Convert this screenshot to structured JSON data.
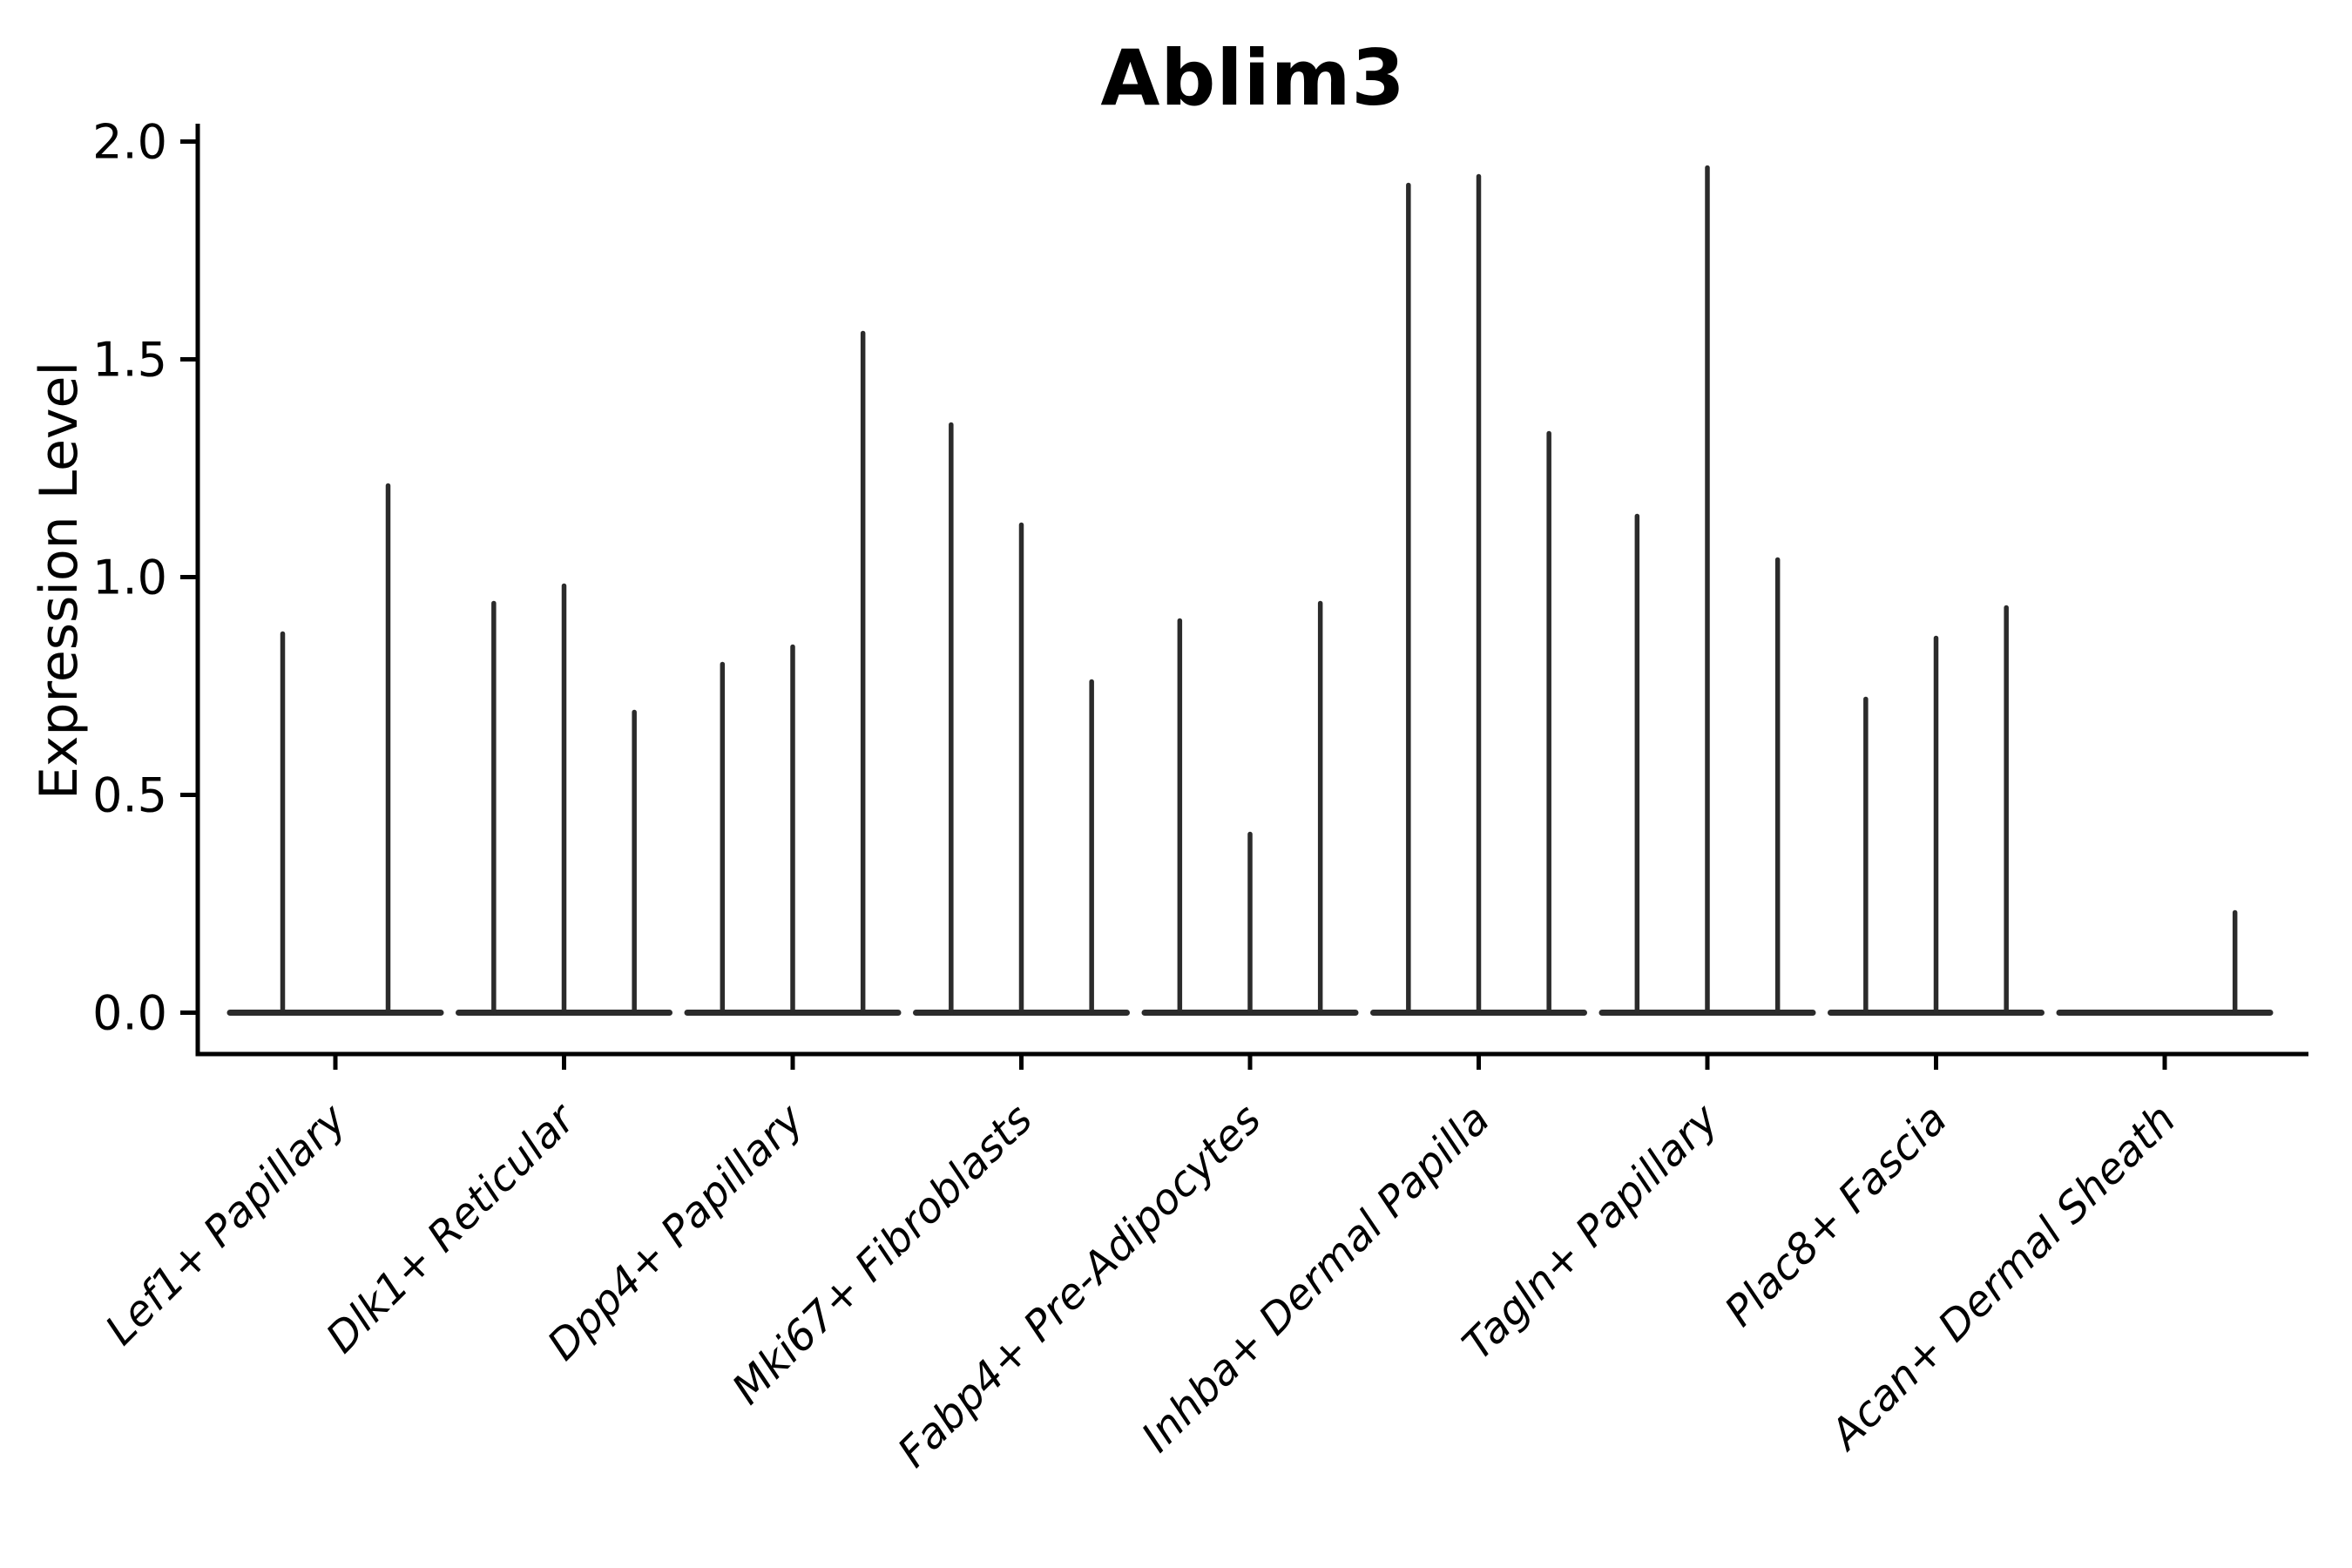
{
  "chart_data": {
    "type": "violin",
    "title": "Ablim3",
    "ylabel": "Expression Level",
    "xlabel": "",
    "ylim": [
      -0.095,
      2.04
    ],
    "yticks": [
      0.0,
      0.5,
      1.0,
      1.5,
      2.0
    ],
    "ytick_labels": [
      "0.0",
      "0.5",
      "1.0",
      "1.5",
      "2.0"
    ],
    "grid": false,
    "legend": false,
    "violin_color": "#2b2b2b",
    "axis_color": "#000000",
    "categories": [
      "Lef1+ Papillary",
      "Dlk1+ Reticular",
      "Dpp4+ Papillary",
      "Mki67+ Fibroblasts",
      "Fabp4+ Pre-Adipocytes",
      "Inhba+ Dermal Papilla",
      "Tagln+ Papillary",
      "Plac8+ Fascia",
      "Acan+ Dermal Sheath"
    ],
    "series": [
      {
        "category": "Lef1+ Papillary",
        "violin_peaks": [
          0.87,
          1.21
        ]
      },
      {
        "category": "Dlk1+ Reticular",
        "violin_peaks": [
          0.94,
          0.98,
          0.69
        ]
      },
      {
        "category": "Dpp4+ Papillary",
        "violin_peaks": [
          0.8,
          0.84,
          1.56
        ]
      },
      {
        "category": "Mki67+ Fibroblasts",
        "violin_peaks": [
          1.35,
          1.12,
          0.76
        ]
      },
      {
        "category": "Fabp4+ Pre-Adipocytes",
        "violin_peaks": [
          0.9,
          0.41,
          0.94
        ]
      },
      {
        "category": "Inhba+ Dermal Papilla",
        "violin_peaks": [
          1.9,
          1.92,
          1.33
        ]
      },
      {
        "category": "Tagln+ Papillary",
        "violin_peaks": [
          1.14,
          1.94,
          1.04
        ]
      },
      {
        "category": "Plac8+ Fascia",
        "violin_peaks": [
          0.72,
          0.86,
          0.93
        ]
      },
      {
        "category": "Acan+ Dermal Sheath",
        "violin_peaks": [
          0.0,
          0.0,
          0.23
        ]
      }
    ]
  }
}
